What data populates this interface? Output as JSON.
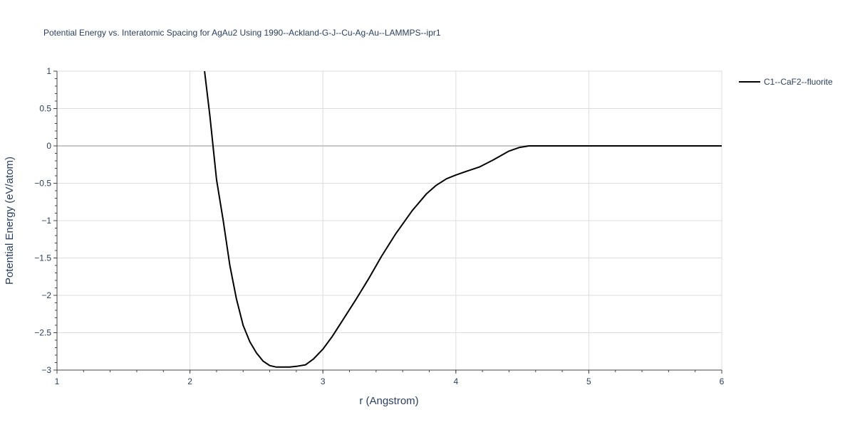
{
  "chart_data": {
    "type": "line",
    "title": "Potential Energy vs. Interatomic Spacing for AgAu2 Using 1990--Ackland-G-J--Cu-Ag-Au--LAMMPS--ipr1",
    "xlabel": "r (Angstrom)",
    "ylabel": "Potential Energy (eV/atom)",
    "xlim": [
      1,
      6
    ],
    "ylim": [
      -3,
      1
    ],
    "x_ticks": [
      1,
      2,
      3,
      4,
      5,
      6
    ],
    "x_tick_labels": [
      "1",
      "2",
      "3",
      "4",
      "5",
      "6"
    ],
    "y_ticks": [
      1,
      0.5,
      0,
      -0.5,
      -1,
      -1.5,
      -2,
      -2.5,
      -3
    ],
    "y_tick_labels": [
      "1",
      "0.5",
      "0",
      "−0.5",
      "−1",
      "−1.5",
      "−2",
      "−2.5",
      "−3"
    ],
    "grid": true,
    "legend_position": "top-right",
    "series": [
      {
        "name": "C1--CaF2--fluorite",
        "color": "#000000",
        "x": [
          2.11,
          2.15,
          2.2,
          2.25,
          2.3,
          2.35,
          2.4,
          2.45,
          2.5,
          2.55,
          2.6,
          2.65,
          2.75,
          2.8,
          2.87,
          2.93,
          3.0,
          3.07,
          3.15,
          3.25,
          3.35,
          3.44,
          3.55,
          3.67,
          3.78,
          3.85,
          3.93,
          4.0,
          4.08,
          4.18,
          4.28,
          4.4,
          4.48,
          4.55,
          4.6,
          5.0,
          5.5,
          6.0
        ],
        "y": [
          1.0,
          0.4,
          -0.45,
          -1.0,
          -1.6,
          -2.05,
          -2.4,
          -2.62,
          -2.77,
          -2.88,
          -2.94,
          -2.96,
          -2.96,
          -2.95,
          -2.93,
          -2.85,
          -2.72,
          -2.55,
          -2.33,
          -2.05,
          -1.76,
          -1.48,
          -1.17,
          -0.87,
          -0.64,
          -0.53,
          -0.44,
          -0.39,
          -0.34,
          -0.28,
          -0.19,
          -0.07,
          -0.02,
          0.0,
          0.0,
          0.0,
          0.0,
          0.0
        ]
      }
    ]
  }
}
